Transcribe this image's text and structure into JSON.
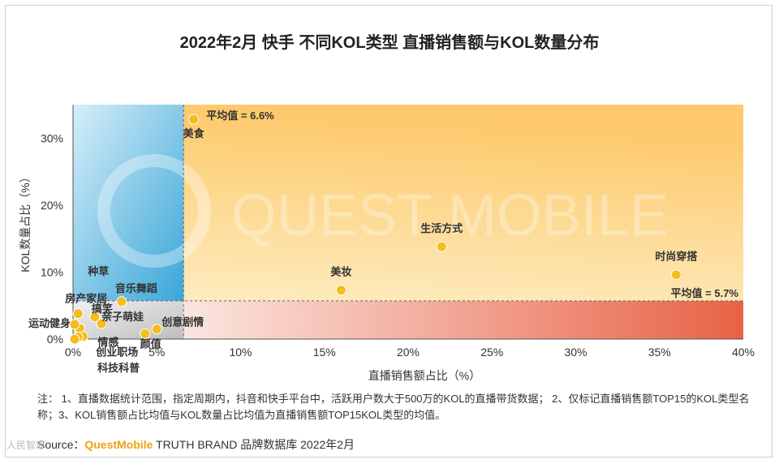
{
  "title": "2022年2月 快手 不同KOL类型 直播销售额与KOL数量分布",
  "watermark": "QUEST MOBILE",
  "note": "注：  1、直播数据统计范围，指定周期内，抖音和快手平台中，活跃用户数大于500万的KOL的直播带货数据；  2、仅标记直播销售额TOP15的KOL类型名称；3、KOL销售额占比均值与KOL数量占比均值为直播销售额TOP15KOL类型的均值。",
  "source": {
    "prefix": "Source：",
    "brand": "QuestMobile",
    "suffix": " TRUTH BRAND 品牌数据库 2022年2月"
  },
  "corner_logo": "人民智库",
  "colors": {
    "point": "#f5bc1c",
    "quadrant_blue": "#3aa6d8",
    "quadrant_orange": "#fdc96a",
    "quadrant_red": "#e86245"
  },
  "chart_data": {
    "type": "scatter",
    "xlabel": "直播销售额占比（%）",
    "ylabel": "KOL数量占比（%）",
    "xlim": [
      0,
      40
    ],
    "ylim": [
      0,
      35
    ],
    "x_ticks": [
      "0%",
      "5%",
      "10%",
      "15%",
      "20%",
      "25%",
      "30%",
      "35%",
      "40%"
    ],
    "y_ticks": [
      "0%",
      "10%",
      "20%",
      "30%"
    ],
    "x_tick_values": [
      0,
      5,
      10,
      15,
      20,
      25,
      30,
      35,
      40
    ],
    "y_tick_values": [
      0,
      10,
      20,
      30
    ],
    "avg_x": 6.6,
    "avg_y": 5.7,
    "avg_x_label": "平均值 = 6.6%",
    "avg_y_label": "平均值 = 5.7%",
    "points": [
      {
        "label": "美食",
        "x": 7.2,
        "y": 32.8
      },
      {
        "label": "生活方式",
        "x": 22.0,
        "y": 13.8
      },
      {
        "label": "时尚穿搭",
        "x": 36.0,
        "y": 9.6
      },
      {
        "label": "美妆",
        "x": 16.0,
        "y": 7.3
      },
      {
        "label": "种草",
        "x": 0.4,
        "y": 1.6
      },
      {
        "label": "音乐舞蹈",
        "x": 2.9,
        "y": 5.6
      },
      {
        "label": "房产家居",
        "x": 0.3,
        "y": 3.8
      },
      {
        "label": "运动健身",
        "x": 0.1,
        "y": 2.2
      },
      {
        "label": "搞笑",
        "x": 1.3,
        "y": 3.3
      },
      {
        "label": "亲子萌娃",
        "x": 1.7,
        "y": 2.3
      },
      {
        "label": "创意剧情",
        "x": 5.0,
        "y": 1.5
      },
      {
        "label": "情感",
        "x": 0.6,
        "y": 0.4
      },
      {
        "label": "颜值",
        "x": 4.3,
        "y": 0.8
      },
      {
        "label": "创业职场",
        "x": 0.3,
        "y": 0.3
      },
      {
        "label": "科技科普",
        "x": 0.1,
        "y": 0.0
      }
    ]
  }
}
